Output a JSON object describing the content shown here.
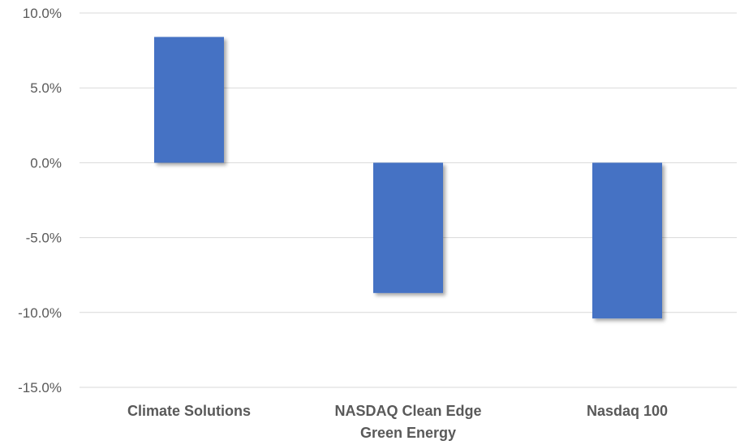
{
  "chart_data": {
    "type": "bar",
    "title": "",
    "xlabel": "",
    "ylabel": "",
    "categories": [
      [
        "Climate Solutions"
      ],
      [
        "NASDAQ Clean Edge",
        "Green Energy"
      ],
      [
        "Nasdaq 100"
      ]
    ],
    "values": [
      8.4,
      -8.7,
      -10.4
    ],
    "ylim": [
      -15,
      10
    ],
    "yticks": [
      10,
      5,
      0,
      -5,
      -10,
      -15
    ],
    "ytick_labels": [
      "10.0%",
      "5.0%",
      "0.0%",
      "-5.0%",
      "-10.0%",
      "-15.0%"
    ],
    "grid": true,
    "legend": "none",
    "bar_color": "#4472c4"
  }
}
